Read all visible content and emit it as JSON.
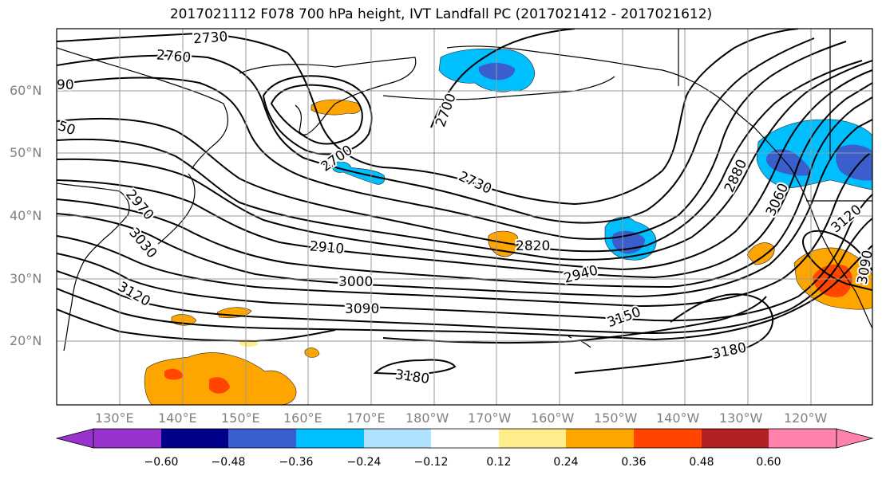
{
  "title": "2017021112 F078 700 hPa height, IVT Landfall PC (2017021412 - 2017021612)",
  "lat_labels": [
    "60°N",
    "50°N",
    "40°N",
    "30°N",
    "20°N"
  ],
  "lon_labels": [
    "130°E",
    "140°E",
    "150°E",
    "160°E",
    "170°E",
    "180°W",
    "170°W",
    "160°W",
    "150°W",
    "140°W",
    "130°W",
    "120°W"
  ],
  "contour_labels": [
    "2730",
    "2760",
    "90",
    "50",
    "2700",
    "2700",
    "2730",
    "2880",
    "3060",
    "3120",
    "2970",
    "3030",
    "3120",
    "2910",
    "3000",
    "3090",
    "2820",
    "2940",
    "3150",
    "3180",
    "3180",
    "3090"
  ],
  "colorbar": {
    "ticks": [
      "−0.60",
      "−0.48",
      "−0.36",
      "−0.24",
      "−0.12",
      "0.12",
      "0.24",
      "0.36",
      "0.48",
      "0.60"
    ],
    "colors": [
      "#9932cc",
      "#00008b",
      "#3a5fcd",
      "#00bfff",
      "#b0e2ff",
      "#ffffff",
      "#ffec8b",
      "#ffa500",
      "#ff4500",
      "#b22222",
      "#ff82ab"
    ]
  },
  "shading_colors": {
    "blue_light": "#00bfff",
    "blue_mid": "#3a5fcd",
    "orange": "#ffa500",
    "red": "#ff4500",
    "yellow": "#ffec8b"
  }
}
